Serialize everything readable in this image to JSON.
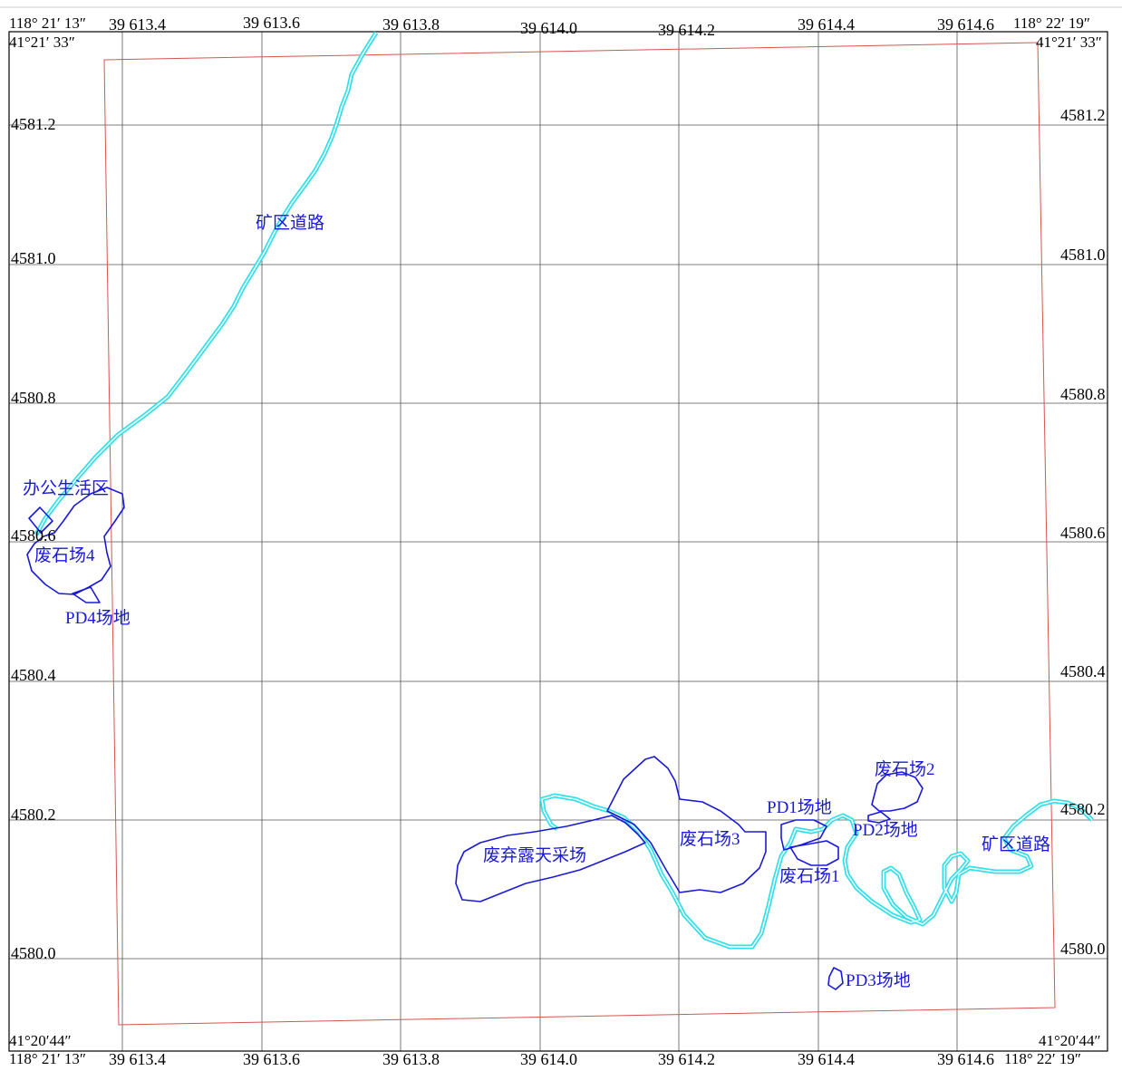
{
  "corners": {
    "top_left_lon": "118° 21′ 13″",
    "top_left_lat": "41°21′ 33″",
    "top_right_lon": "118° 22′ 19″",
    "top_right_lat": "41°21′ 33″",
    "bottom_left_lat": "41°20′44″",
    "bottom_left_lon": "118° 21′ 13″",
    "bottom_right_lat": "41°20′44″",
    "bottom_right_lon": "118° 22′ 19″"
  },
  "eastings_top": [
    "39 613.4",
    "39 613.6",
    "39 613.8",
    "39 614.0",
    "39 614.2",
    "39 614.4",
    "39 614.6"
  ],
  "eastings_bottom": [
    "39 613.4",
    "39 613.6",
    "39 613.8",
    "39 614.0",
    "39 614.2",
    "39 614.4",
    "39 614.6"
  ],
  "northings_left": [
    "4581.2",
    "4581.0",
    "4580.8",
    "4580.6",
    "4580.4",
    "4580.2",
    "4580.0"
  ],
  "northings_right": [
    "4581.2",
    "4581.0",
    "4580.8",
    "4580.6",
    "4580.4",
    "4580.2",
    "4580.0"
  ],
  "features": {
    "road_label_north": "矿区道路",
    "road_label_east": "矿区道路",
    "office_area": "办公生活区",
    "waste_dump_4": "废石场4",
    "pd4_site": "PD4场地",
    "abandoned_pit": "废弃露天采场",
    "waste_dump_3": "废石场3",
    "pd1_site": "PD1场地",
    "waste_dump_2": "废石场2",
    "pd2_site": "PD2场地",
    "waste_dump_1": "废石场1",
    "pd3_site": "PD3场地"
  },
  "colors": {
    "road": "#33e0e8",
    "boundary": "#1a1ad6",
    "grid": "#555555",
    "mining_boundary": "#d9534f"
  }
}
